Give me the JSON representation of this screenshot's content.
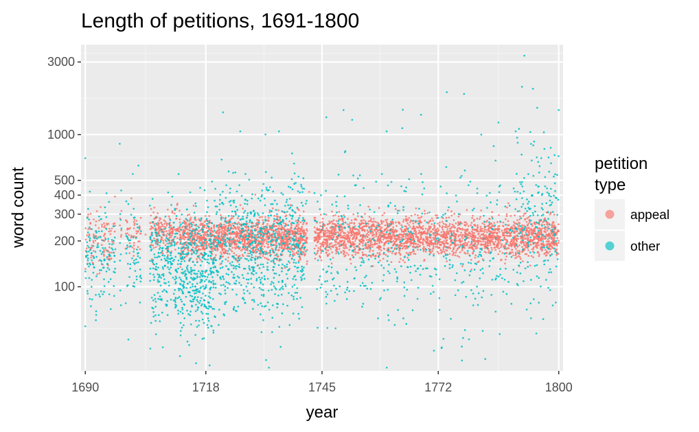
{
  "chart_data": {
    "type": "scatter",
    "title": "Length of petitions, 1691-1800",
    "xlabel": "year",
    "ylabel": "word count",
    "x_scale": "linear",
    "y_scale": "log10",
    "xlim": [
      1689,
      1801
    ],
    "ylim": [
      28,
      3900
    ],
    "x_ticks": [
      1690,
      1718,
      1745,
      1772,
      1800
    ],
    "x_tick_labels": [
      "1690",
      "1718",
      "1745",
      "1772",
      "1800"
    ],
    "y_ticks": [
      100,
      200,
      300,
      400,
      500,
      1000,
      3000
    ],
    "y_tick_labels": [
      "100",
      "200",
      "300",
      "400",
      "500",
      "1000",
      "3000"
    ],
    "grid": true,
    "legend": {
      "title": "petition type",
      "title_lines": [
        "petition",
        "type"
      ],
      "placement": "right"
    },
    "series": [
      {
        "name": "appeal",
        "color": "#F8766D",
        "summary": {
          "typical_count": 200,
          "spread_low": 140,
          "spread_high": 320
        },
        "sample_points": [
          [
            1692,
            210
          ],
          [
            1695,
            260
          ],
          [
            1700,
            240
          ],
          [
            1704,
            220
          ],
          [
            1708,
            230
          ],
          [
            1712,
            210
          ],
          [
            1716,
            205
          ],
          [
            1720,
            215
          ],
          [
            1724,
            225
          ],
          [
            1728,
            210
          ],
          [
            1732,
            205
          ],
          [
            1736,
            200
          ],
          [
            1740,
            195
          ],
          [
            1742,
            420
          ],
          [
            1746,
            200
          ],
          [
            1750,
            210
          ],
          [
            1755,
            215
          ],
          [
            1760,
            210
          ],
          [
            1765,
            205
          ],
          [
            1770,
            200
          ],
          [
            1775,
            215
          ],
          [
            1780,
            220
          ],
          [
            1785,
            210
          ],
          [
            1790,
            215
          ],
          [
            1795,
            220
          ],
          [
            1799,
            210
          ]
        ]
      },
      {
        "name": "other",
        "color": "#00BFC4",
        "summary": {
          "typical_count": 160,
          "spread_low": 60,
          "spread_high": 700
        },
        "sample_points": [
          [
            1690,
            700
          ],
          [
            1690,
            55
          ],
          [
            1698,
            870
          ],
          [
            1700,
            45
          ],
          [
            1708,
            40
          ],
          [
            1712,
            35
          ],
          [
            1716,
            115
          ],
          [
            1716,
            105
          ],
          [
            1722,
            1400
          ],
          [
            1726,
            1050
          ],
          [
            1732,
            33
          ],
          [
            1735,
            1050
          ],
          [
            1738,
            280
          ],
          [
            1746,
            1300
          ],
          [
            1750,
            1450
          ],
          [
            1752,
            1250
          ],
          [
            1760,
            1050
          ],
          [
            1768,
            1350
          ],
          [
            1771,
            38
          ],
          [
            1774,
            1900
          ],
          [
            1778,
            1850
          ],
          [
            1782,
            1000
          ],
          [
            1786,
            1200
          ],
          [
            1790,
            1050
          ],
          [
            1792,
            3300
          ],
          [
            1794,
            2000
          ],
          [
            1795,
            1500
          ],
          [
            1798,
            95
          ],
          [
            1800,
            1450
          ]
        ]
      }
    ]
  }
}
